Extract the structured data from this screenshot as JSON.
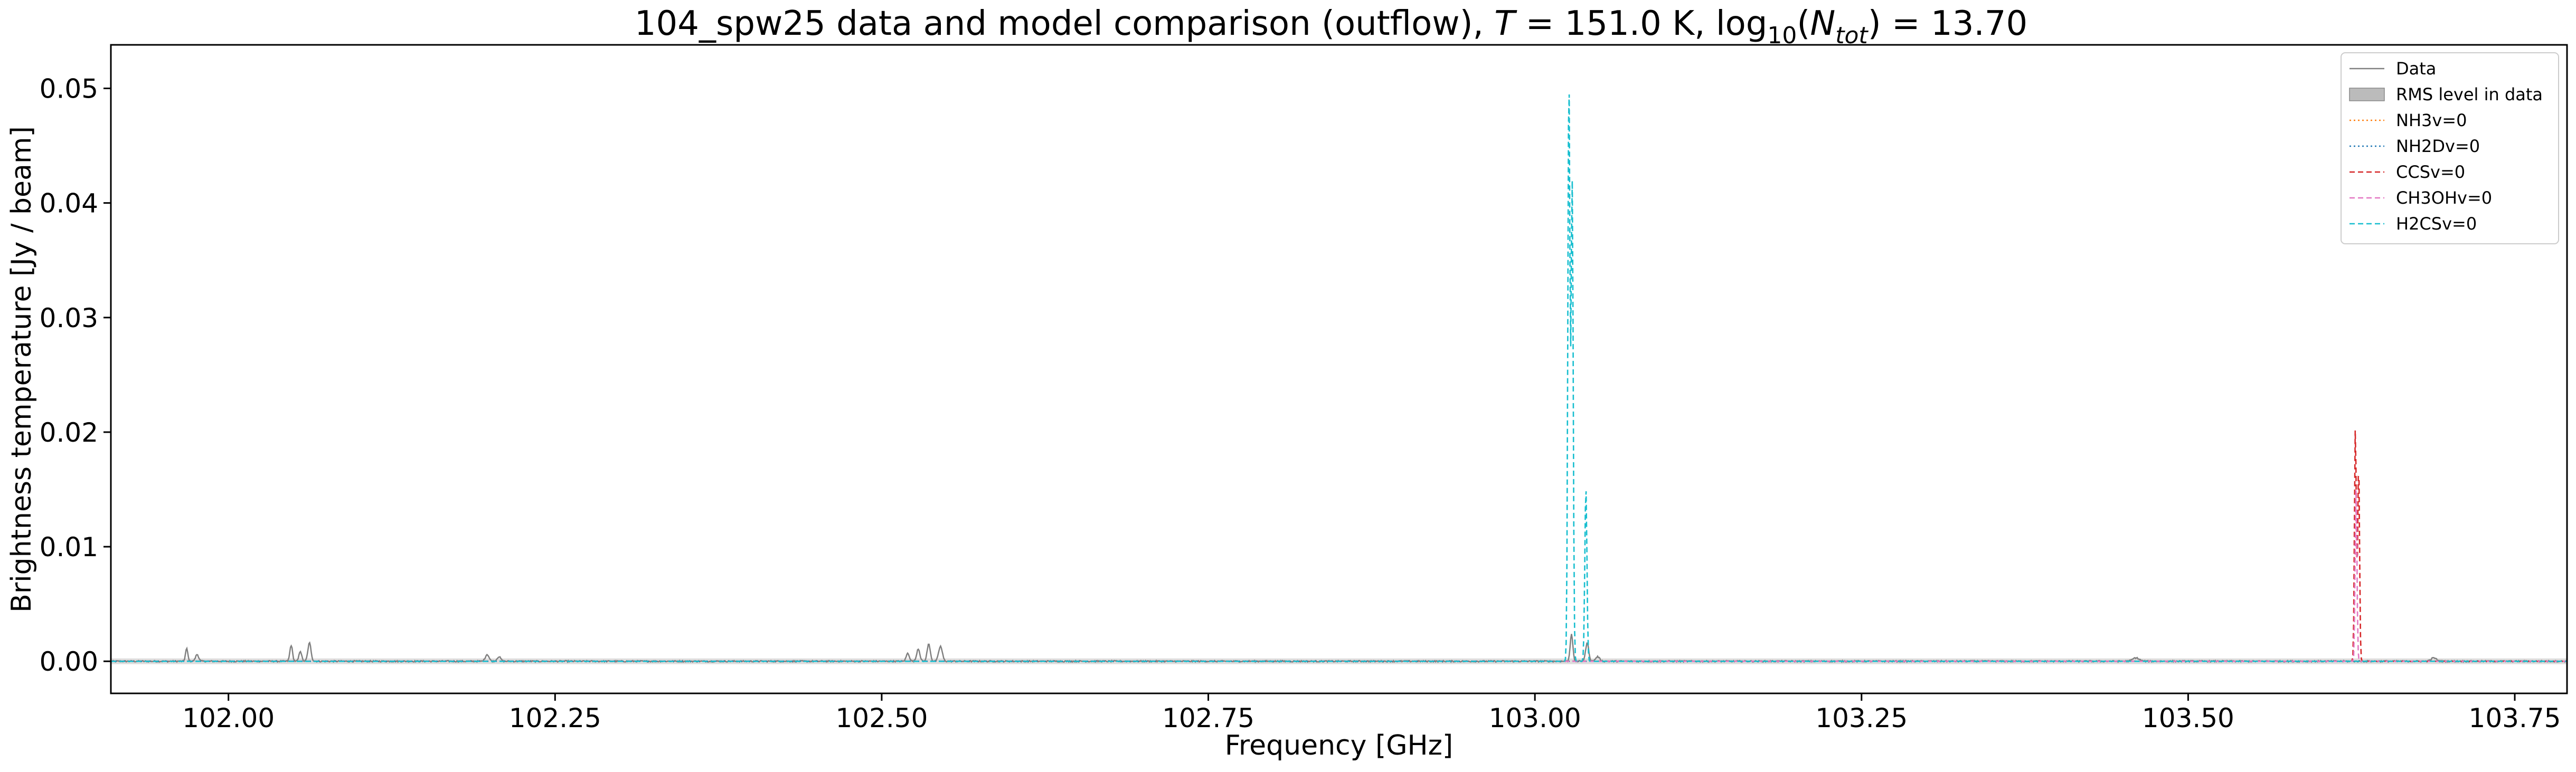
{
  "chart_data": {
    "type": "line",
    "title_prefix": "104_spw25 data and model comparison (outflow), ",
    "title_T_symbol": "T",
    "title_T_value": " = 151.0 K, log",
    "title_log_sub": "10",
    "title_paren_open": "(",
    "title_N": "N",
    "title_N_sub": "tot",
    "title_suffix": ") = 13.70",
    "xlabel": "Frequency [GHz]",
    "ylabel": "Brightness temperature [Jy / beam]",
    "xlim": [
      101.91,
      103.79
    ],
    "ylim": [
      -0.0028,
      0.0538
    ],
    "xticks": [
      102.0,
      102.25,
      102.5,
      102.75,
      103.0,
      103.25,
      103.5,
      103.75
    ],
    "xtick_labels": [
      "102.00",
      "102.25",
      "102.50",
      "102.75",
      "103.00",
      "103.25",
      "103.50",
      "103.75"
    ],
    "yticks": [
      0.0,
      0.01,
      0.02,
      0.03,
      0.04,
      0.05
    ],
    "ytick_labels": [
      "0.00",
      "0.01",
      "0.02",
      "0.03",
      "0.04",
      "0.05"
    ],
    "rms_level": 0.00025,
    "legend_position": "top-right",
    "series": [
      {
        "name": "Data",
        "color": "#808080",
        "style": "solid",
        "baseline": 0.0,
        "noise": 6e-05,
        "peaks": [
          {
            "x": 101.968,
            "y": 0.0011,
            "w": 0.0009
          },
          {
            "x": 101.976,
            "y": 0.0006,
            "w": 0.0012
          },
          {
            "x": 102.048,
            "y": 0.0014,
            "w": 0.001
          },
          {
            "x": 102.055,
            "y": 0.0009,
            "w": 0.001
          },
          {
            "x": 102.062,
            "y": 0.0016,
            "w": 0.0012
          },
          {
            "x": 102.198,
            "y": 0.0006,
            "w": 0.0014
          },
          {
            "x": 102.207,
            "y": 0.0004,
            "w": 0.0014
          },
          {
            "x": 102.52,
            "y": 0.0007,
            "w": 0.0012
          },
          {
            "x": 102.528,
            "y": 0.0011,
            "w": 0.0012
          },
          {
            "x": 102.536,
            "y": 0.0015,
            "w": 0.0012
          },
          {
            "x": 102.545,
            "y": 0.0013,
            "w": 0.0014
          },
          {
            "x": 103.028,
            "y": 0.0024,
            "w": 0.001
          },
          {
            "x": 103.04,
            "y": 0.0016,
            "w": 0.0012
          },
          {
            "x": 103.048,
            "y": 0.0004,
            "w": 0.0015
          },
          {
            "x": 103.46,
            "y": 0.0003,
            "w": 0.0025
          },
          {
            "x": 103.688,
            "y": 0.0003,
            "w": 0.002
          }
        ]
      },
      {
        "name": "NH3v=0",
        "color": "#ff7f0e",
        "style": "dotted",
        "baseline": 0.0,
        "noise": 0,
        "peaks": []
      },
      {
        "name": "NH2Dv=0",
        "color": "#1f77b4",
        "style": "dotted",
        "baseline": 0.0,
        "noise": 0,
        "peaks": []
      },
      {
        "name": "CCSv=0",
        "color": "#d62728",
        "style": "dashed",
        "baseline": 0.0,
        "noise": 0,
        "peaks": [
          {
            "x": 103.628,
            "y": 0.0206,
            "w": 0.0007
          },
          {
            "x": 103.6305,
            "y": 0.0175,
            "w": 0.0007
          }
        ]
      },
      {
        "name": "CH3OHv=0",
        "color": "#e377c2",
        "style": "dashed",
        "baseline": 0.0,
        "noise": 0,
        "peaks": [
          {
            "x": 103.6285,
            "y": 0.015,
            "w": 0.0007
          }
        ]
      },
      {
        "name": "H2CSv=0",
        "color": "#17becf",
        "style": "dashed",
        "baseline": 0.0,
        "noise": 0,
        "peaks": [
          {
            "x": 103.026,
            "y": 0.0511,
            "w": 0.0008
          },
          {
            "x": 103.0285,
            "y": 0.042,
            "w": 0.0008
          },
          {
            "x": 103.039,
            "y": 0.0152,
            "w": 0.0008
          }
        ]
      }
    ],
    "legend_rms_label": "RMS level in data",
    "legend_rms_color": "#bbbbbb"
  }
}
